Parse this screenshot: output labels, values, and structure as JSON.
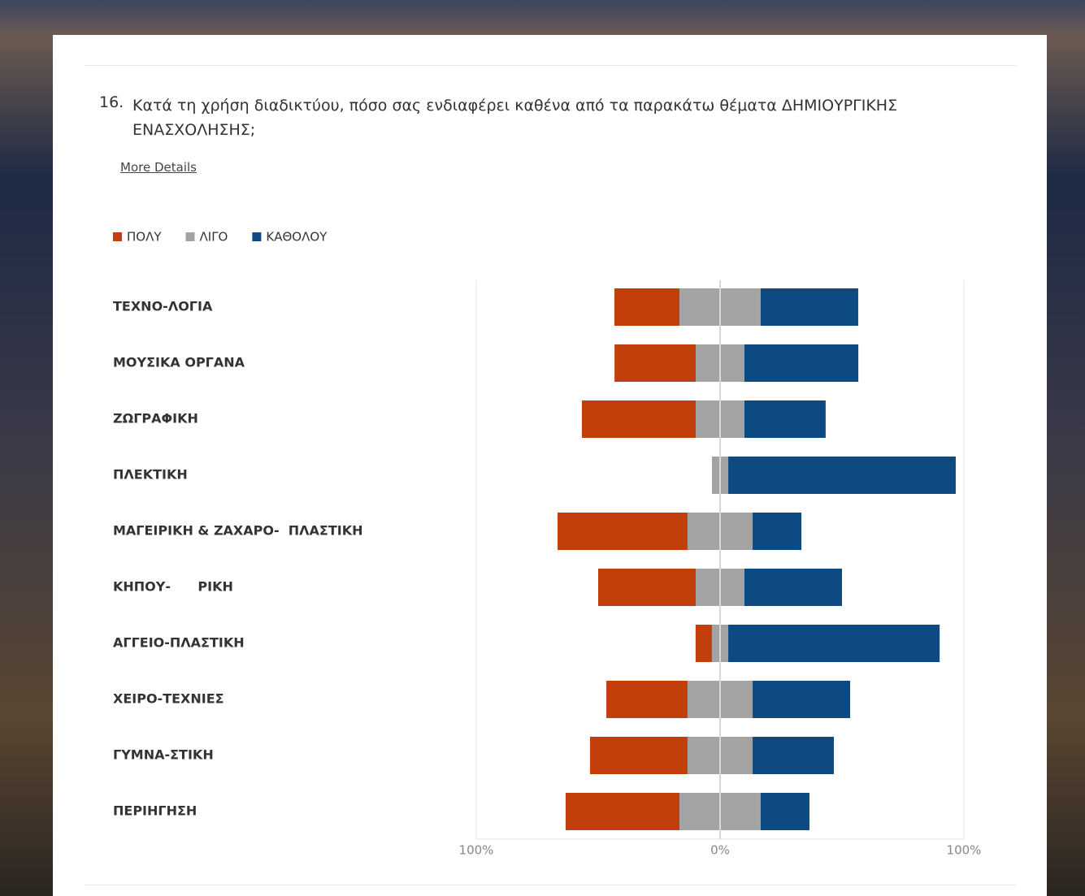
{
  "question": {
    "number": "16.",
    "text": "Κατά τη χρήση διαδικτύου, πόσο σας ενδιαφέρει καθένα από τα παρακάτω θέματα ΔΗΜΙΟΥΡΓΙΚΗΣ ΕΝΑΣΧΟΛΗΣΗΣ;",
    "link": "More Details"
  },
  "chart_data": {
    "type": "diverging-bar",
    "categories": [
      "ΤΕΧΝΟ-ΛΟΓΙΑ",
      "ΜΟΥΣΙΚΑ ΟΡΓΑΝΑ",
      "ΖΩΓΡΑΦΙΚΗ",
      "ΠΛΕΚΤΙΚΗ",
      "ΜΑΓΕΙΡΙΚΗ & ΖΑΧΑΡΟ-  ΠΛΑΣΤΙΚΗ",
      "ΚΗΠΟΥ-      ΡΙΚΗ",
      "ΑΓΓΕΙΟ-ΠΛΑΣΤΙΚΗ",
      "ΧΕΙΡΟ-ΤΕΧΝΙΕΣ",
      "ΓΥΜΝΑ-ΣΤΙΚΗ",
      "ΠΕΡΙΗΓΗΣΗ"
    ],
    "series": [
      {
        "name": "ΠΟΛΥ",
        "color": "#c23f0c",
        "values": [
          26.7,
          33.3,
          46.7,
          0,
          53.3,
          40,
          6.7,
          33.3,
          40,
          46.7
        ]
      },
      {
        "name": "ΛΙΓΟ",
        "color": "#a3a3a3",
        "values": [
          33.3,
          20,
          20,
          6.7,
          26.7,
          20,
          6.7,
          26.7,
          26.7,
          33.3
        ]
      },
      {
        "name": "ΚΑΘΟΛΟΥ",
        "color": "#0e4a82",
        "values": [
          40,
          46.7,
          33.3,
          93.3,
          20,
          40,
          86.7,
          40,
          33.3,
          20
        ]
      }
    ],
    "xlim": [
      -100,
      100
    ],
    "xticks": [
      {
        "value": -100,
        "label": "100%"
      },
      {
        "value": 0,
        "label": "0%"
      },
      {
        "value": 100,
        "label": "100%"
      }
    ],
    "grid": true,
    "legend": "top-left"
  }
}
